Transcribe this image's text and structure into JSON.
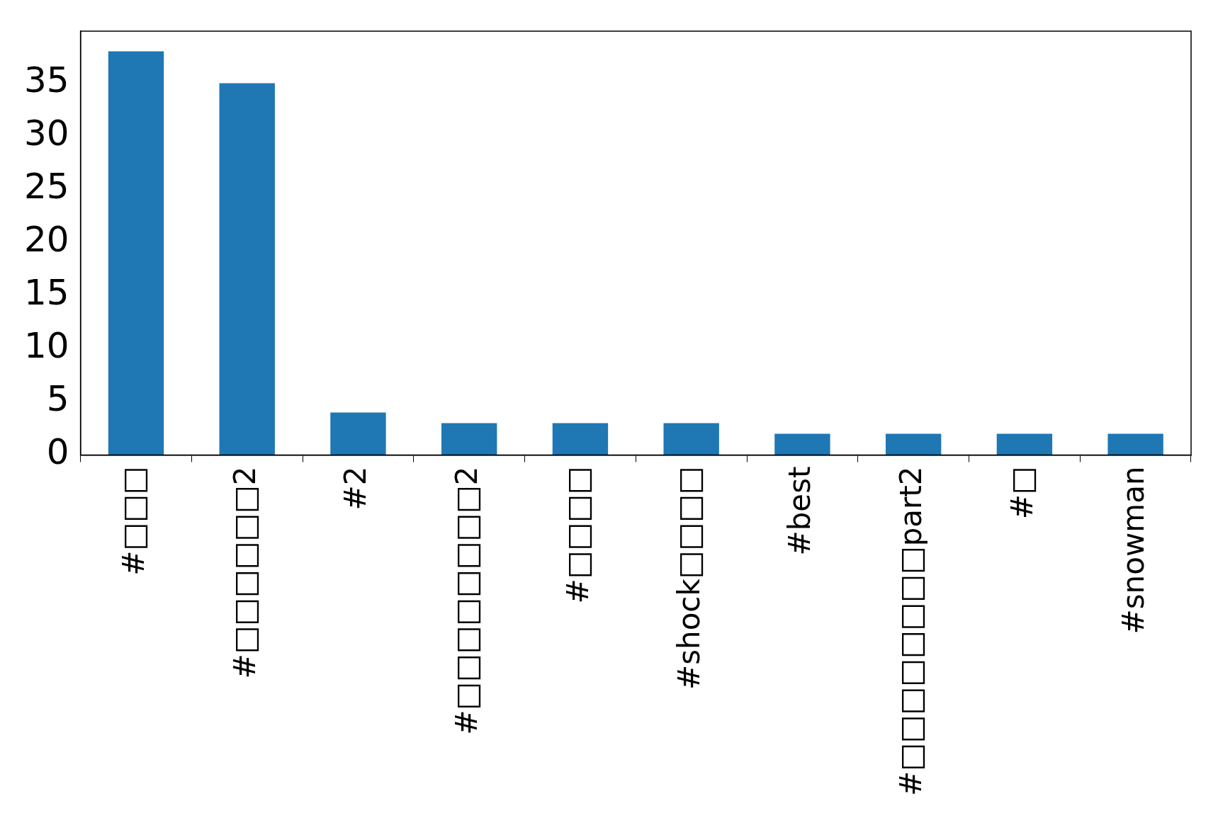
{
  "chart_data": {
    "type": "bar",
    "categories": [
      "#□□□",
      "#□□□□□□2",
      "#2",
      "#□□□□□□□□2",
      "#□□□□",
      "#shock□□□□",
      "#best",
      "#□□□□□□□□part2",
      "#□",
      "#snowman"
    ],
    "values": [
      38,
      35,
      4,
      3,
      3,
      3,
      2,
      2,
      2,
      2
    ],
    "color": "#1f77b4",
    "ylim": [
      0,
      39.9
    ],
    "yticks": [
      0,
      5,
      10,
      15,
      20,
      25,
      30,
      35
    ],
    "grid": false,
    "legend": false
  }
}
